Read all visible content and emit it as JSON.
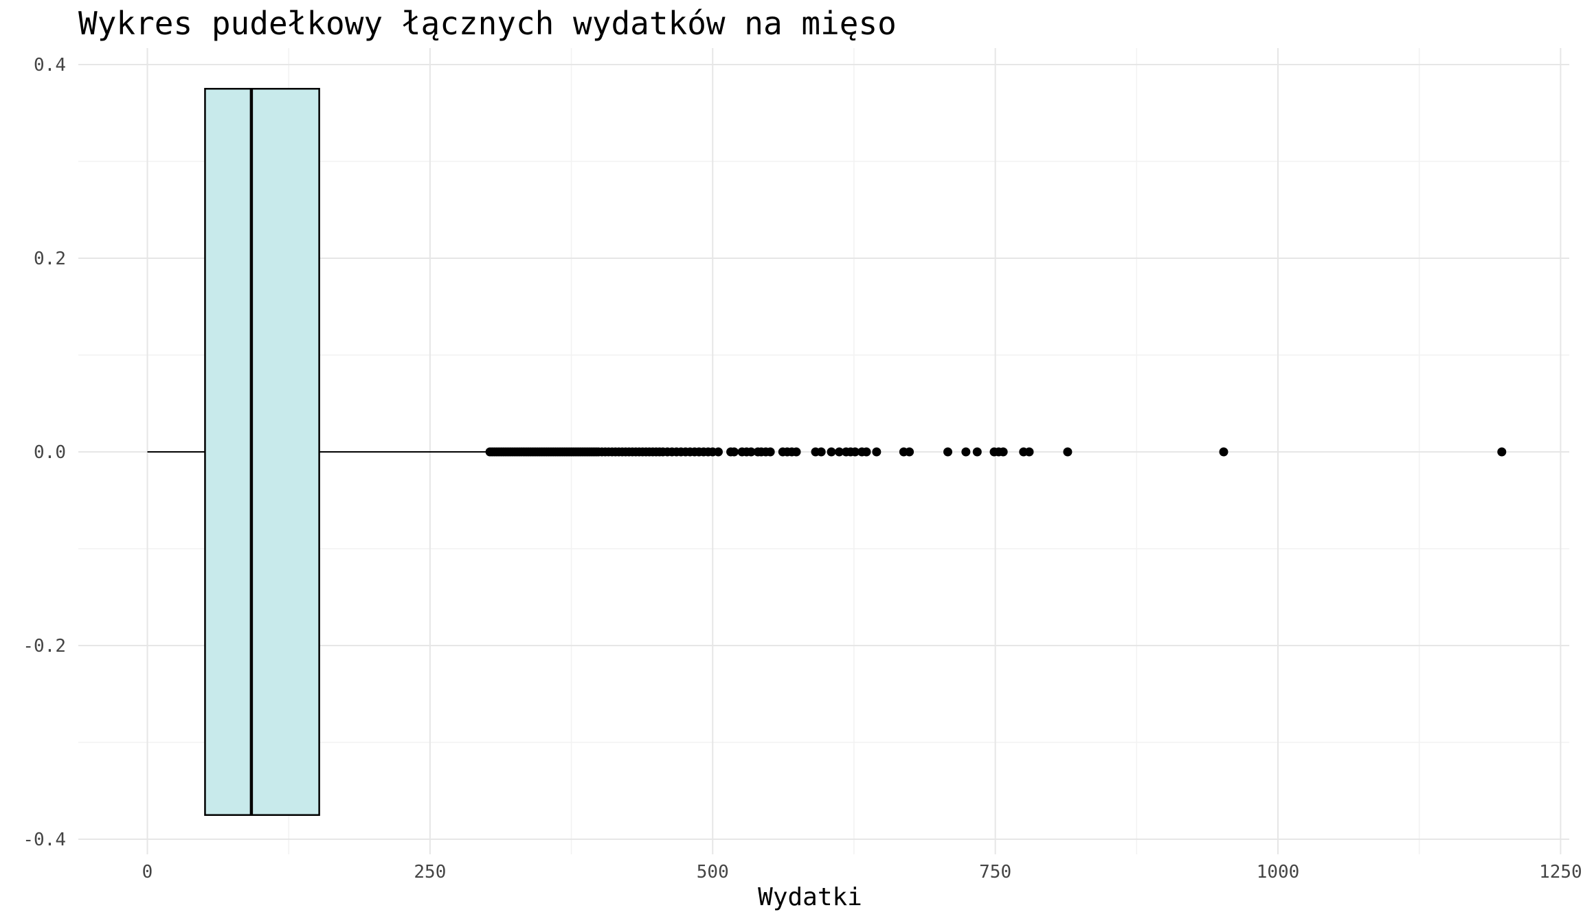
{
  "chart_data": {
    "type": "boxplot",
    "title": "Wykres pudełkowy łącznych wydatków na mięso",
    "xlabel": "Wydatki",
    "ylabel": "",
    "xlim": [
      -60,
      1260
    ],
    "ylim": [
      -0.42,
      0.42
    ],
    "x_ticks": [
      {
        "value": 0,
        "label": "0"
      },
      {
        "value": 250,
        "label": "250"
      },
      {
        "value": 500,
        "label": "500"
      },
      {
        "value": 750,
        "label": "750"
      },
      {
        "value": 1000,
        "label": "1000"
      },
      {
        "value": 1250,
        "label": "1250"
      }
    ],
    "x_minor_ticks": [
      125,
      375,
      625,
      875,
      1125
    ],
    "y_ticks": [
      {
        "value": 0.4,
        "label": "0.4"
      },
      {
        "value": 0.2,
        "label": "0.2"
      },
      {
        "value": 0.0,
        "label": "0.0"
      },
      {
        "value": -0.2,
        "label": "-0.2"
      },
      {
        "value": -0.4,
        "label": "-0.4"
      }
    ],
    "y_minor_ticks": [
      0.3,
      0.1,
      -0.1,
      -0.3
    ],
    "grid": true,
    "box": {
      "whisker_low": 0,
      "q1": 51,
      "median": 92,
      "q3": 152,
      "whisker_high": 302,
      "box_ymin": -0.375,
      "box_ymax": 0.375,
      "fill": "#c8eaeb",
      "outline": "#000000"
    },
    "outliers": [
      303,
      305,
      307,
      309,
      311,
      313,
      315,
      317,
      319,
      321,
      323,
      325,
      327,
      329,
      331,
      333,
      335,
      337,
      339,
      341,
      343,
      345,
      347,
      349,
      351,
      353,
      355,
      357,
      359,
      361,
      363,
      365,
      367,
      369,
      371,
      373,
      375,
      377,
      379,
      381,
      383,
      385,
      387,
      389,
      391,
      393,
      395,
      397,
      399,
      402,
      405,
      408,
      411,
      414,
      417,
      420,
      423,
      426,
      429,
      432,
      435,
      438,
      441,
      444,
      447,
      450,
      453,
      456,
      460,
      464,
      468,
      472,
      476,
      480,
      484,
      488,
      492,
      496,
      500,
      505,
      516,
      519,
      526,
      530,
      534,
      540,
      543,
      547,
      551,
      562,
      566,
      570,
      574,
      591,
      596,
      605,
      612,
      618,
      622,
      626,
      632,
      636,
      645,
      669,
      674,
      708,
      724,
      734,
      749,
      753,
      757,
      775,
      780,
      814,
      952,
      1198
    ],
    "outlier_color": "#000000"
  }
}
